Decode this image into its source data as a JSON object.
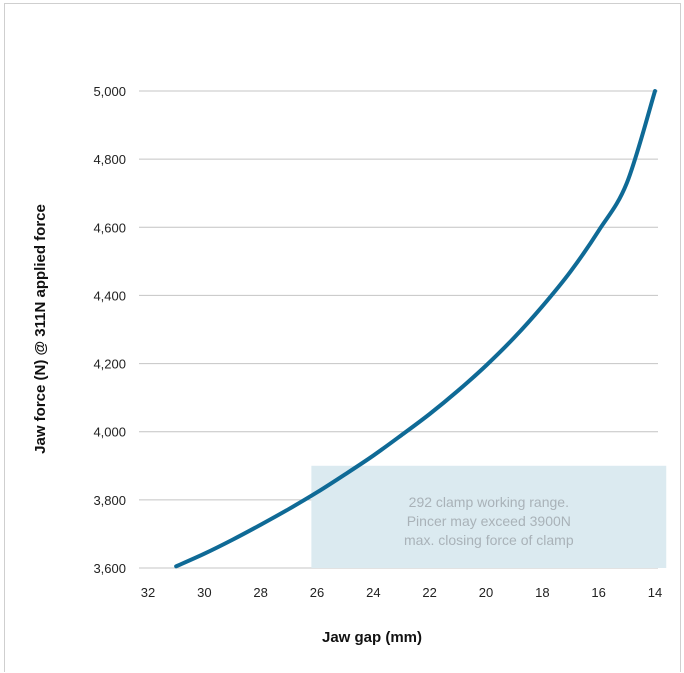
{
  "chart_data": {
    "type": "line",
    "title": "",
    "xlabel": "Jaw gap (mm)",
    "ylabel": "Jaw force (N) @ 311N applied force",
    "xlim": [
      33,
      14
    ],
    "ylim": [
      3600,
      5000
    ],
    "x_reversed": true,
    "grid": "horizontal",
    "x_ticks": [
      32,
      30,
      28,
      26,
      24,
      22,
      20,
      18,
      16,
      14
    ],
    "x_tick_labels": [
      "32",
      "30",
      "28",
      "26",
      "24",
      "22",
      "20",
      "18",
      "16",
      "14"
    ],
    "y_ticks": [
      3600,
      3800,
      4000,
      4200,
      4400,
      4600,
      4800,
      5000
    ],
    "y_tick_labels": [
      "3,600",
      "3,800",
      "4,000",
      "4,200",
      "4,400",
      "4,600",
      "4,800",
      "5,000"
    ],
    "series": [
      {
        "color": "#0f6a96",
        "x": [
          31.0,
          30.0,
          29.0,
          28.0,
          27.0,
          26.0,
          25.0,
          24.0,
          23.0,
          22.0,
          21.0,
          20.0,
          19.0,
          18.0,
          17.0,
          16.0,
          15.0,
          14.0
        ],
        "y": [
          3605,
          3642,
          3683,
          3727,
          3773,
          3822,
          3875,
          3930,
          3990,
          4052,
          4120,
          4194,
          4276,
          4368,
          4470,
          4590,
          4730,
          5000
        ]
      }
    ],
    "annotation": {
      "lines": [
        "292 clamp working range.",
        "Pincer may exceed 3900N",
        "max. closing force of clamp"
      ],
      "x_range": [
        26.2,
        13.6
      ],
      "y_range": [
        3600,
        3900
      ],
      "fill": "#dbeaf0"
    }
  }
}
